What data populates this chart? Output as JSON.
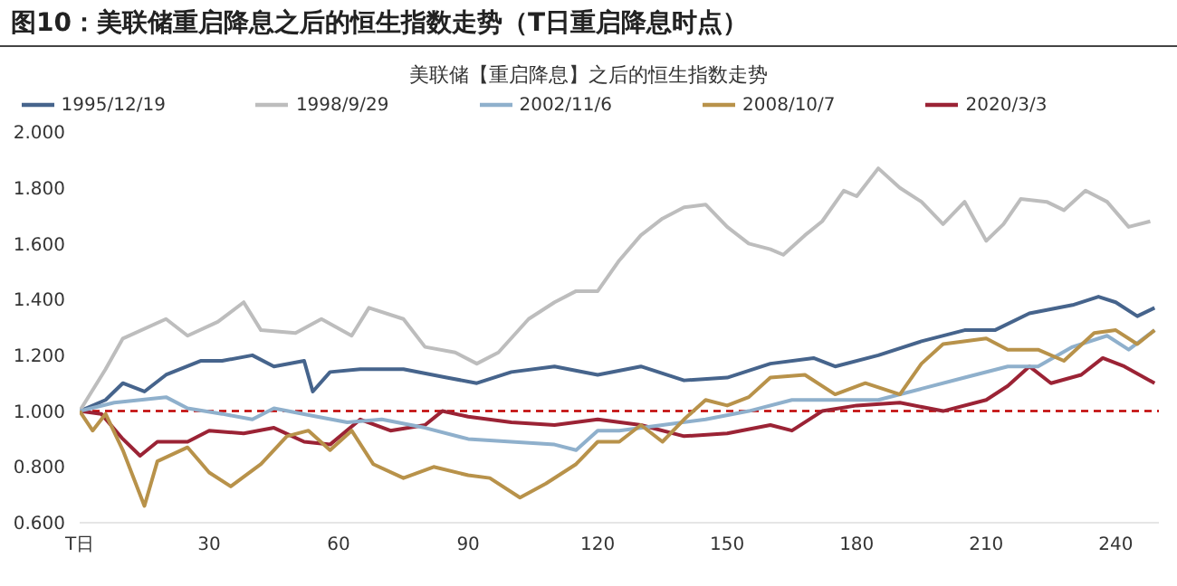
{
  "chart_data": {
    "type": "line",
    "title": "图10：美联储重启降息之后的恒生指数走势（T日重启降息时点）",
    "subtitle": "美联储【重启降息】之后的恒生指数走势",
    "xlim": [
      0,
      250
    ],
    "xticks": [
      {
        "value": 0,
        "label": "T日"
      },
      30,
      60,
      90,
      120,
      150,
      180,
      210,
      240
    ],
    "ylim": [
      0.6,
      2.0
    ],
    "yticks": [
      {
        "value": 0.6,
        "label": "0.600"
      },
      {
        "value": 0.8,
        "label": "0.800"
      },
      {
        "value": 1.0,
        "label": "1.000"
      },
      {
        "value": 1.2,
        "label": "1.200"
      },
      {
        "value": 1.4,
        "label": "1.400"
      },
      {
        "value": 1.6,
        "label": "1.600"
      },
      {
        "value": 1.8,
        "label": "1.800"
      },
      {
        "value": 2.0,
        "label": "2.000"
      }
    ],
    "grid": false,
    "legend": "top",
    "marker": "none",
    "line_style": "solid",
    "ref_lines": [
      {
        "axis": "y",
        "value": 1.0,
        "color": "#c00000",
        "line_style": "dashed"
      }
    ],
    "series": [
      {
        "name": "1995/12/19",
        "color": "#46648c",
        "x": [
          0,
          6,
          10,
          15,
          20,
          28,
          33,
          40,
          45,
          52,
          54,
          58,
          65,
          75,
          85,
          92,
          100,
          110,
          120,
          130,
          140,
          150,
          160,
          170,
          175,
          185,
          195,
          205,
          212,
          220,
          230,
          236,
          240,
          245,
          249
        ],
        "values": [
          1.0,
          1.04,
          1.1,
          1.07,
          1.13,
          1.18,
          1.18,
          1.2,
          1.16,
          1.18,
          1.07,
          1.14,
          1.15,
          1.15,
          1.12,
          1.1,
          1.14,
          1.16,
          1.13,
          1.16,
          1.11,
          1.12,
          1.17,
          1.19,
          1.16,
          1.2,
          1.25,
          1.29,
          1.29,
          1.35,
          1.38,
          1.41,
          1.39,
          1.34,
          1.37
        ]
      },
      {
        "name": "2020/3/3",
        "color": "#9b2335",
        "x": [
          0,
          5,
          10,
          14,
          18,
          25,
          30,
          38,
          45,
          52,
          58,
          65,
          72,
          80,
          84,
          90,
          100,
          110,
          120,
          130,
          140,
          150,
          160,
          165,
          172,
          180,
          190,
          200,
          210,
          215,
          220,
          225,
          232,
          237,
          242,
          249
        ],
        "values": [
          1.0,
          0.99,
          0.9,
          0.84,
          0.89,
          0.89,
          0.93,
          0.92,
          0.94,
          0.89,
          0.88,
          0.97,
          0.93,
          0.95,
          1.0,
          0.98,
          0.96,
          0.95,
          0.97,
          0.95,
          0.91,
          0.92,
          0.95,
          0.93,
          1.0,
          1.02,
          1.03,
          1.0,
          1.04,
          1.09,
          1.16,
          1.1,
          1.13,
          1.19,
          1.16,
          1.1
        ]
      },
      {
        "name": "1998/9/29",
        "color": "#bdbdbd",
        "x": [
          0,
          6,
          10,
          20,
          25,
          32,
          38,
          42,
          50,
          56,
          63,
          67,
          75,
          80,
          87,
          92,
          97,
          104,
          110,
          115,
          120,
          125,
          130,
          135,
          140,
          145,
          150,
          155,
          160,
          163,
          168,
          172,
          177,
          180,
          185,
          190,
          195,
          200,
          205,
          210,
          214,
          218,
          224,
          228,
          233,
          238,
          243,
          248
        ],
        "values": [
          1.0,
          1.15,
          1.26,
          1.33,
          1.27,
          1.32,
          1.39,
          1.29,
          1.28,
          1.33,
          1.27,
          1.37,
          1.33,
          1.23,
          1.21,
          1.17,
          1.21,
          1.33,
          1.39,
          1.43,
          1.43,
          1.54,
          1.63,
          1.69,
          1.73,
          1.74,
          1.66,
          1.6,
          1.58,
          1.56,
          1.63,
          1.68,
          1.79,
          1.77,
          1.87,
          1.8,
          1.75,
          1.67,
          1.75,
          1.61,
          1.67,
          1.76,
          1.75,
          1.72,
          1.79,
          1.75,
          1.66,
          1.68
        ]
      },
      {
        "name": "2002/11/6",
        "color": "#8fb0cc",
        "x": [
          0,
          8,
          20,
          25,
          33,
          40,
          45,
          55,
          62,
          70,
          80,
          90,
          100,
          110,
          115,
          120,
          125,
          135,
          145,
          155,
          165,
          175,
          185,
          195,
          205,
          215,
          222,
          230,
          238,
          243,
          249
        ],
        "values": [
          1.0,
          1.03,
          1.05,
          1.01,
          0.99,
          0.97,
          1.01,
          0.98,
          0.96,
          0.97,
          0.94,
          0.9,
          0.89,
          0.88,
          0.86,
          0.93,
          0.93,
          0.95,
          0.97,
          1.0,
          1.04,
          1.04,
          1.04,
          1.08,
          1.12,
          1.16,
          1.16,
          1.23,
          1.27,
          1.22,
          1.29
        ]
      },
      {
        "name": "2008/10/7",
        "color": "#b8924a",
        "x": [
          0,
          3,
          6,
          10,
          15,
          18,
          25,
          30,
          35,
          42,
          48,
          53,
          58,
          63,
          68,
          75,
          82,
          90,
          95,
          102,
          108,
          115,
          120,
          125,
          130,
          135,
          140,
          145,
          150,
          155,
          160,
          168,
          175,
          182,
          190,
          195,
          200,
          210,
          215,
          222,
          228,
          235,
          240,
          245,
          249
        ],
        "values": [
          1.0,
          0.93,
          0.99,
          0.86,
          0.66,
          0.82,
          0.87,
          0.78,
          0.73,
          0.81,
          0.91,
          0.93,
          0.86,
          0.93,
          0.81,
          0.76,
          0.8,
          0.77,
          0.76,
          0.69,
          0.74,
          0.81,
          0.89,
          0.89,
          0.95,
          0.89,
          0.97,
          1.04,
          1.02,
          1.05,
          1.12,
          1.13,
          1.06,
          1.1,
          1.06,
          1.17,
          1.24,
          1.26,
          1.22,
          1.22,
          1.18,
          1.28,
          1.29,
          1.24,
          1.29
        ]
      }
    ]
  }
}
